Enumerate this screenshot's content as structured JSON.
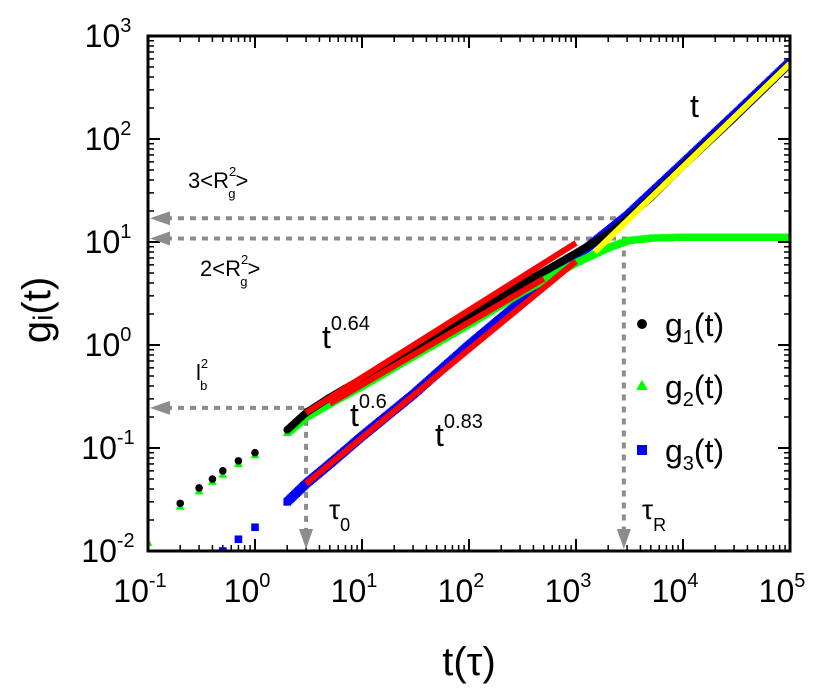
{
  "chart_data": {
    "type": "scatter",
    "xscale": "log",
    "yscale": "log",
    "xlim": [
      0.1,
      100000
    ],
    "ylim": [
      0.01,
      1000
    ],
    "xlabel": "t(τ)",
    "ylabel": "gᵢ(t)",
    "x_tick_base": "10",
    "x_tick_exponents": [
      "-1",
      "0",
      "1",
      "2",
      "3",
      "4",
      "5"
    ],
    "y_tick_base": "10",
    "y_tick_exponents": [
      "-2",
      "-1",
      "0",
      "1",
      "2",
      "3"
    ],
    "legend_position": "right",
    "series": [
      {
        "name": "g1(t)",
        "color": "#000000",
        "marker": "circle",
        "x": [
          0.2,
          0.3,
          0.4,
          0.5,
          0.7,
          1,
          2,
          3,
          5,
          10,
          30,
          100,
          300,
          1000,
          2000,
          3000,
          5000,
          10000,
          30000,
          100000
        ],
        "y": [
          0.029,
          0.041,
          0.05,
          0.06,
          0.075,
          0.09,
          0.15,
          0.22,
          0.31,
          0.47,
          0.93,
          1.9,
          3.8,
          7.8,
          12,
          16.8,
          27,
          55,
          160,
          540
        ]
      },
      {
        "name": "g2(t)",
        "color": "#00ff00",
        "marker": "triangle",
        "x": [
          0.1,
          0.2,
          0.3,
          0.4,
          0.5,
          0.7,
          1,
          2,
          3,
          5,
          10,
          30,
          100,
          300,
          1000,
          2000,
          3000,
          5000,
          10000,
          30000,
          100000
        ],
        "y": [
          0.012,
          0.027,
          0.038,
          0.047,
          0.055,
          0.07,
          0.085,
          0.14,
          0.2,
          0.27,
          0.4,
          0.78,
          1.6,
          3.2,
          6.3,
          8.8,
          10.2,
          10.8,
          11,
          11,
          11
        ]
      },
      {
        "name": "g3(t)",
        "color": "#0000ff",
        "marker": "square",
        "x": [
          0.5,
          0.7,
          1,
          2,
          3,
          5,
          10,
          30,
          100,
          300,
          1000,
          3000,
          10000,
          30000,
          100000
        ],
        "y": [
          0.01,
          0.013,
          0.017,
          0.03,
          0.045,
          0.07,
          0.13,
          0.33,
          1.0,
          2.6,
          7.2,
          18,
          58,
          170,
          560
        ]
      }
    ],
    "fits": [
      {
        "label": "t^0.64",
        "color": "#ff0000",
        "x": [
          3,
          1000
        ],
        "y": [
          0.22,
          9.8
        ]
      },
      {
        "label": "t^0.6",
        "color": "#ff0000",
        "x": [
          5,
          500
        ],
        "y": [
          0.27,
          4.4
        ]
      },
      {
        "label": "t^0.83",
        "color": "#ff0000",
        "x": [
          3,
          1000
        ],
        "y": [
          0.045,
          6.5
        ]
      },
      {
        "label": "t",
        "color": "#ffff00",
        "x": [
          1500,
          100000
        ],
        "y": [
          8,
          540
        ]
      }
    ],
    "annotations": {
      "fit_labels": [
        {
          "base": "t",
          "exp": "0.64",
          "x": 7,
          "y": 1.1
        },
        {
          "base": "t",
          "exp": "0.6",
          "x": 5,
          "y": 0.13
        },
        {
          "base": "t",
          "exp": "0.83",
          "x": 30,
          "y": 0.1
        },
        {
          "base": "t",
          "exp": "",
          "x": 6000,
          "y": 200
        }
      ],
      "hlines": [
        {
          "y": 17,
          "x_end": 2500,
          "label": "3<R",
          "label_sup": "2",
          "label_sub": "g",
          "label_end": ">"
        },
        {
          "y": 10.8,
          "x_end": 3000,
          "label": "2<R",
          "label_sup": "2",
          "label_sub": "g",
          "label_end": ">"
        },
        {
          "y": 0.245,
          "x_end": 3,
          "label": "l",
          "label_sup": "2",
          "label_sub": "b",
          "label_end": ""
        }
      ],
      "vlines": [
        {
          "x": 3,
          "y_start": 0.245,
          "label": "τ",
          "label_sub": "0"
        },
        {
          "x": 2800,
          "y_start": 10.8,
          "label": "τ",
          "label_sub": "R"
        }
      ]
    }
  }
}
